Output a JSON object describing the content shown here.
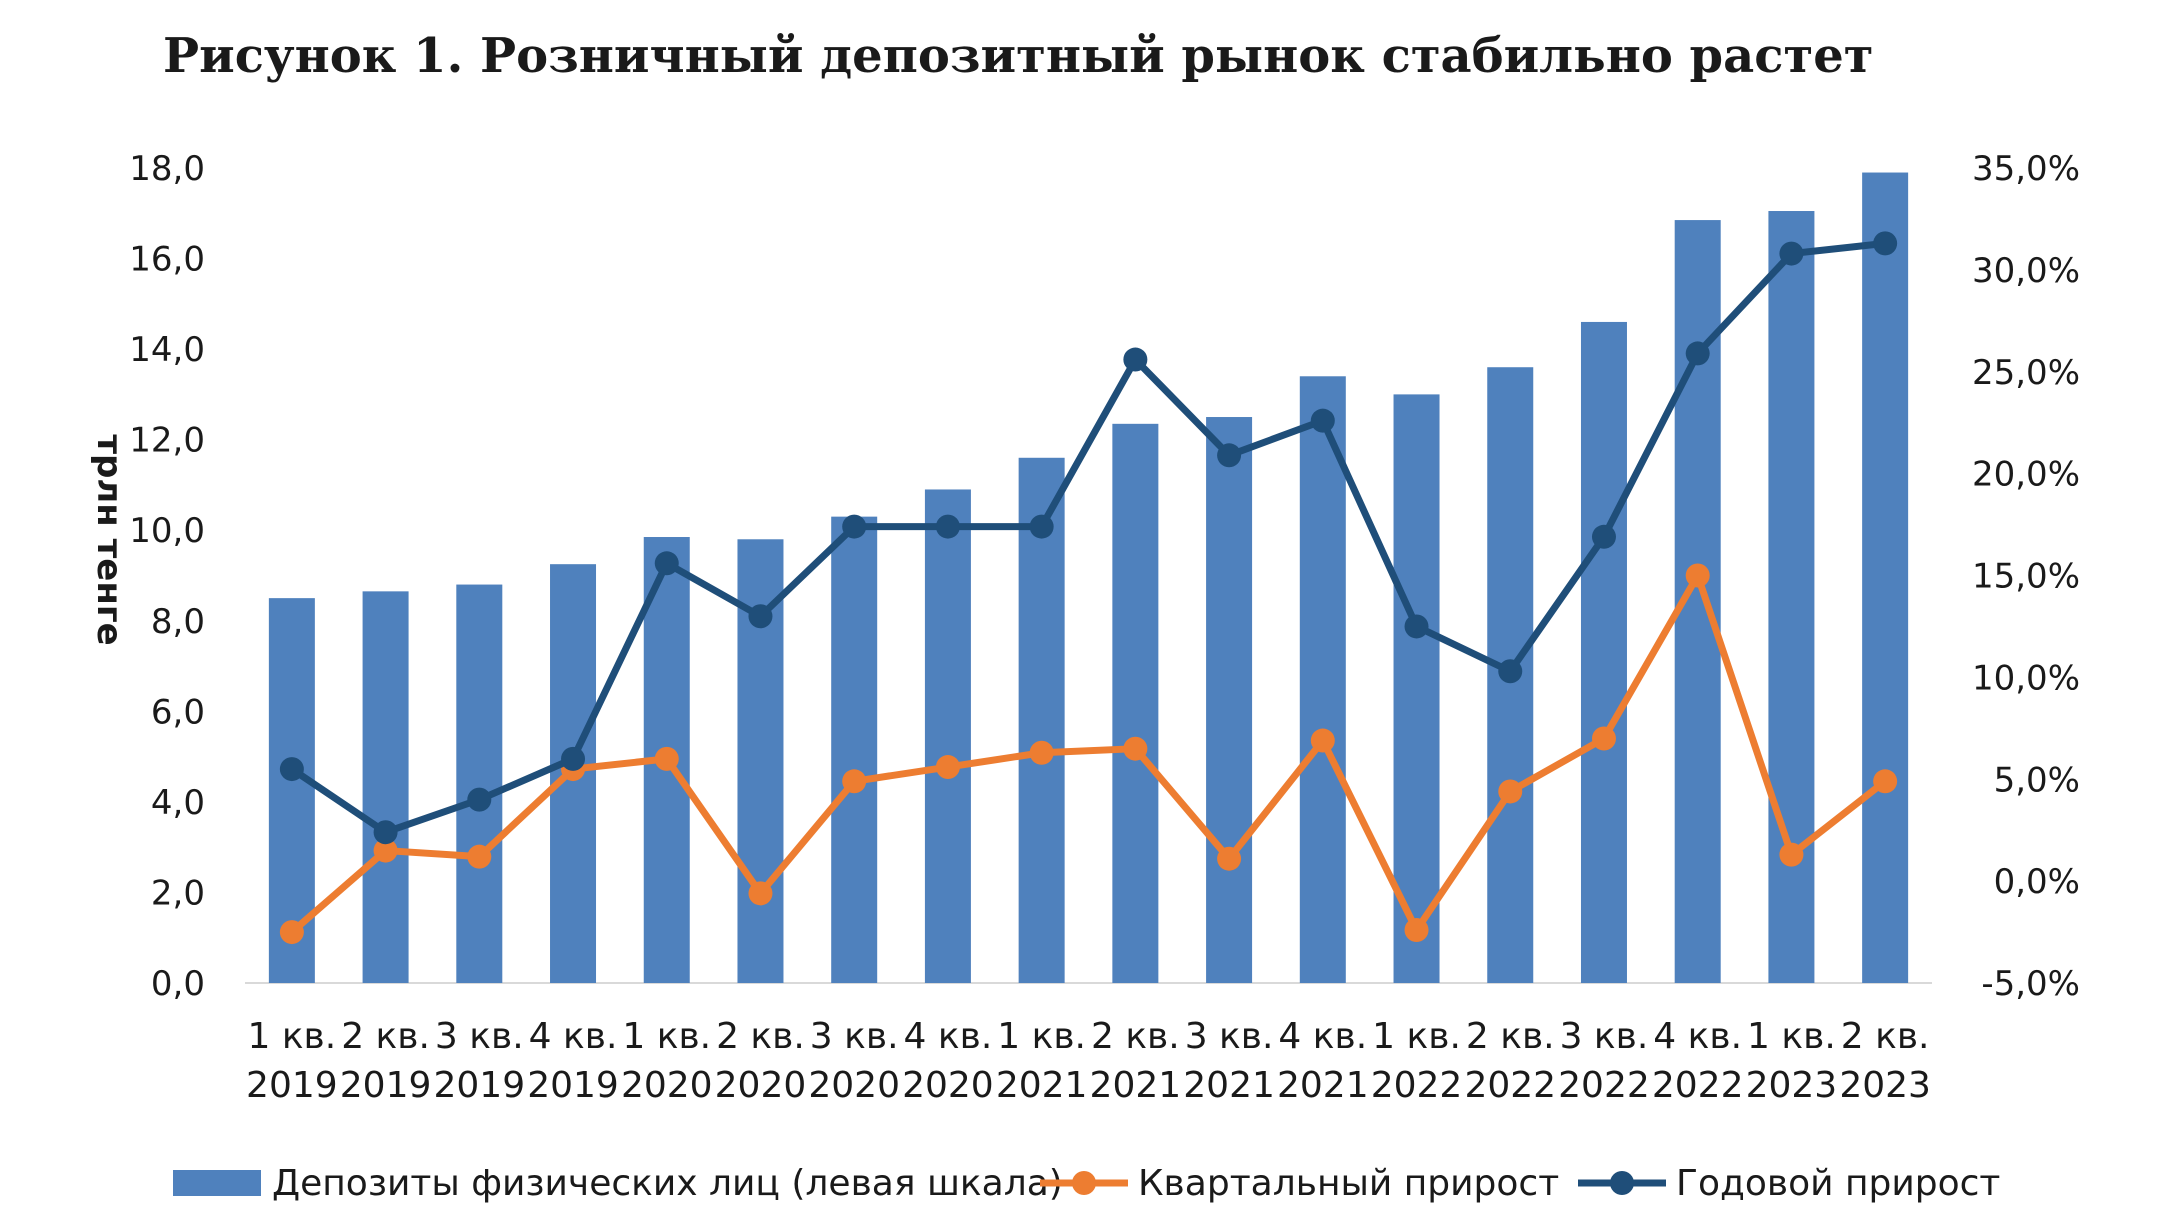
{
  "title": "Рисунок 1. Розничный депозитный рынок стабильно растет",
  "colors": {
    "bars": "#4f81bd",
    "quarterly": "#ed7d31",
    "annual": "#1f4e79",
    "axis": "#d9d9d9"
  },
  "chart_data": {
    "type": "bar+line",
    "title": "Рисунок 1. Розничный депозитный рынок стабильно растет",
    "ylabel": "трлн тенге",
    "ylim": [
      0,
      18
    ],
    "ylim_right": [
      -5,
      35
    ],
    "left_ticks": [
      "0,0",
      "2,0",
      "4,0",
      "6,0",
      "8,0",
      "10,0",
      "12,0",
      "14,0",
      "16,0",
      "18,0"
    ],
    "right_ticks": [
      "-5,0%",
      "0,0%",
      "5,0%",
      "10,0%",
      "15,0%",
      "20,0%",
      "25,0%",
      "30,0%",
      "35,0%"
    ],
    "categories": [
      [
        "1 кв.",
        "2019"
      ],
      [
        "2 кв.",
        "2019"
      ],
      [
        "3 кв.",
        "2019"
      ],
      [
        "4 кв.",
        "2019"
      ],
      [
        "1 кв.",
        "2020"
      ],
      [
        "2 кв.",
        "2020"
      ],
      [
        "3 кв.",
        "2020"
      ],
      [
        "4 кв.",
        "2020"
      ],
      [
        "1 кв.",
        "2021"
      ],
      [
        "2 кв.",
        "2021"
      ],
      [
        "3 кв.",
        "2021"
      ],
      [
        "4 кв.",
        "2021"
      ],
      [
        "1 кв.",
        "2022"
      ],
      [
        "2 кв.",
        "2022"
      ],
      [
        "3 кв.",
        "2022"
      ],
      [
        "4 кв.",
        "2022"
      ],
      [
        "1 кв.",
        "2023"
      ],
      [
        "2 кв.",
        "2023"
      ]
    ],
    "series": [
      {
        "name": "Депозиты физических лиц (левая шкала)",
        "type": "bar",
        "axis": "left",
        "values": [
          8.5,
          8.65,
          8.8,
          9.25,
          9.85,
          9.8,
          10.3,
          10.9,
          11.6,
          12.35,
          12.5,
          13.4,
          13.0,
          13.6,
          14.6,
          16.85,
          17.05,
          17.9
        ]
      },
      {
        "name": "Квартальный прирост",
        "type": "line",
        "axis": "right",
        "values": [
          -2.5,
          1.5,
          1.2,
          5.5,
          6.0,
          -0.6,
          4.9,
          5.6,
          6.3,
          6.5,
          1.1,
          6.9,
          -2.4,
          4.4,
          7.0,
          15.0,
          1.3,
          4.9
        ]
      },
      {
        "name": "Годовой прирост",
        "type": "line",
        "axis": "right",
        "values": [
          5.5,
          2.4,
          4.0,
          6.0,
          15.6,
          13.0,
          17.4,
          17.4,
          17.4,
          25.6,
          20.9,
          22.6,
          12.5,
          10.3,
          16.9,
          25.9,
          30.8,
          31.3
        ]
      }
    ],
    "legend_position": "bottom"
  }
}
